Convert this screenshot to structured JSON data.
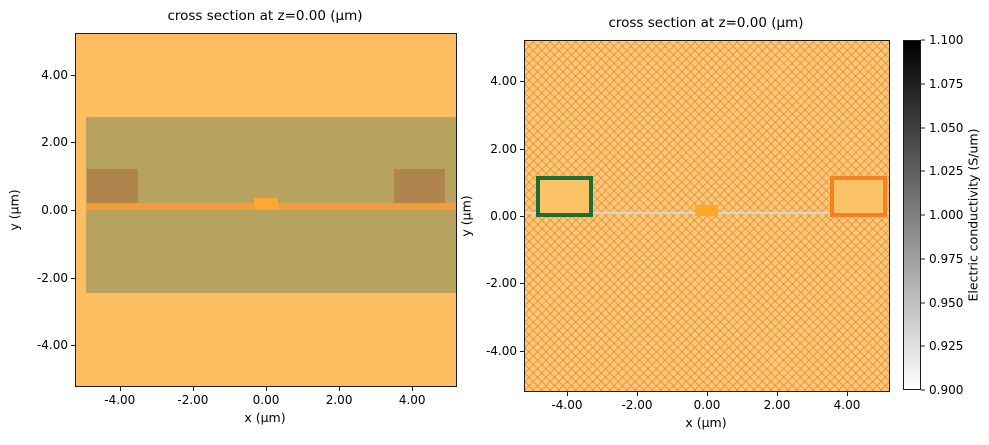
{
  "chart_data": [
    {
      "type": "heatmap",
      "title": "cross section at z=0.00 (μm)",
      "xlabel": "x (μm)",
      "ylabel": "y (μm)",
      "xlim": [
        -5.2,
        5.2
      ],
      "ylim": [
        -5.2,
        5.2
      ],
      "xticks": [
        -4,
        -2,
        0,
        2,
        4
      ],
      "xtick_labels": [
        "-4.00",
        "-2.00",
        "0.00",
        "2.00",
        "4.00"
      ],
      "yticks": [
        -4,
        -2,
        0,
        2,
        4
      ],
      "ytick_labels": [
        "-4.00",
        "-2.00",
        "0.00",
        "2.00",
        "4.00"
      ],
      "grid": false,
      "legend": "none",
      "structures": [
        {
          "name": "background-medium",
          "x": [
            -5.2,
            5.2
          ],
          "y": [
            -5.2,
            5.2
          ],
          "fill": "#fcbe60"
        },
        {
          "name": "cladding-slab",
          "x": [
            -4.93,
            5.2
          ],
          "y": [
            -2.45,
            2.75
          ],
          "fill": "#b7a25f"
        },
        {
          "name": "electrode-left",
          "x": [
            -4.9,
            -3.5
          ],
          "y": [
            0.2,
            1.2
          ],
          "fill": "#b0854d"
        },
        {
          "name": "electrode-right",
          "x": [
            3.5,
            4.9
          ],
          "y": [
            0.2,
            1.2
          ],
          "fill": "#b0854d"
        },
        {
          "name": "thin-film-slab",
          "x": [
            -4.93,
            5.2
          ],
          "y": [
            0.0,
            0.22
          ],
          "fill": "#f29c3e"
        },
        {
          "name": "waveguide-core",
          "x": [
            -0.33,
            0.33
          ],
          "y": [
            0.0,
            0.35
          ],
          "fill": "#ffa72e"
        }
      ]
    },
    {
      "type": "heatmap",
      "title": "cross section at z=0.00 (μm)",
      "xlabel": "x (μm)",
      "ylabel": "y (μm)",
      "xlim": [
        -5.2,
        5.2
      ],
      "ylim": [
        -5.2,
        5.2
      ],
      "xticks": [
        -4,
        -2,
        0,
        2,
        4
      ],
      "xtick_labels": [
        "-4.00",
        "-2.00",
        "0.00",
        "2.00",
        "4.00"
      ],
      "yticks": [
        -4,
        -2,
        0,
        2,
        4
      ],
      "ytick_labels": [
        "-4.00",
        "-2.00",
        "0.00",
        "2.00",
        "4.00"
      ],
      "grid": false,
      "legend": "none",
      "structures": [
        {
          "name": "background-medium-hatched",
          "x": [
            -5.2,
            5.2
          ],
          "y": [
            -5.2,
            5.2
          ],
          "fill": "#ffc87a",
          "hatch": true
        },
        {
          "name": "thin-film-line",
          "x": [
            -5.2,
            5.2
          ],
          "y": [
            0.06,
            0.13
          ],
          "fill": "#d6d6d6"
        },
        {
          "name": "electrode-left-outline",
          "x": [
            -4.9,
            -3.5
          ],
          "y": [
            0.2,
            1.2
          ],
          "fill": "#fcc268",
          "stroke": "#1e6e34",
          "lw": 4
        },
        {
          "name": "electrode-right-outline",
          "x": [
            3.5,
            4.9
          ],
          "y": [
            0.2,
            1.2
          ],
          "fill": "#fcc268",
          "stroke": "#f58220",
          "lw": 4
        },
        {
          "name": "waveguide-core",
          "x": [
            -0.33,
            0.33
          ],
          "y": [
            0.0,
            0.32
          ],
          "fill": "#ffa726"
        }
      ]
    }
  ],
  "colorbar": {
    "label": "Electric conductivity (S/um)",
    "vmin": 0.9,
    "vmax": 1.1,
    "tick_labels": [
      "1.100",
      "1.075",
      "1.050",
      "1.025",
      "1.000",
      "0.975",
      "0.950",
      "0.925",
      "0.900"
    ],
    "colormap_top": "#000000",
    "colormap_bottom": "#ffffff"
  }
}
